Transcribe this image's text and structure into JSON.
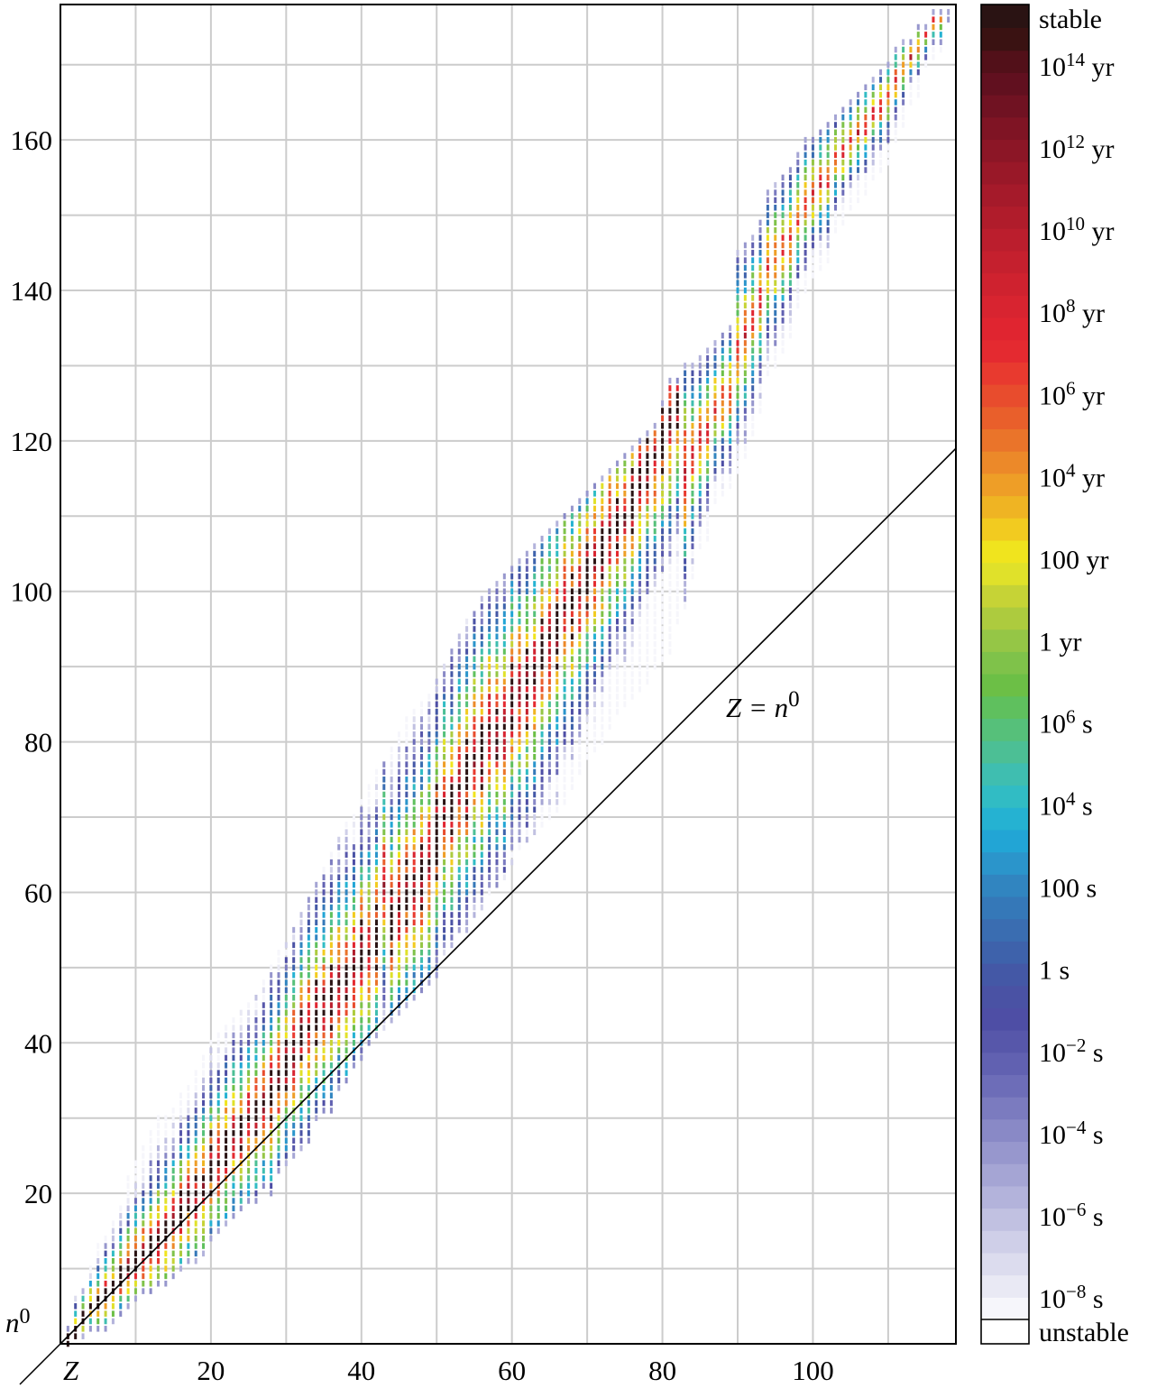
{
  "chart_data": {
    "type": "heatmap",
    "description_axes": {
      "x_symbol": "Z",
      "y_symbol": "n",
      "y_symbol_sup": "0"
    },
    "xlim": [
      0,
      119
    ],
    "ylim": [
      0,
      178
    ],
    "x_ticks": [
      20,
      40,
      60,
      80,
      100
    ],
    "y_ticks": [
      20,
      40,
      60,
      80,
      100,
      120,
      140,
      160
    ],
    "x_tick_labels": [
      "20",
      "40",
      "60",
      "80",
      "100"
    ],
    "y_tick_labels": [
      "20",
      "40",
      "60",
      "80",
      "100",
      "120",
      "140",
      "160"
    ],
    "grid": true,
    "grid_step": 10,
    "reference_line": {
      "label_main": "Z = n",
      "label_sup": "0",
      "slope": 1,
      "intercept": 0
    },
    "colorbar": {
      "labels": [
        {
          "base": "stable",
          "sup": "",
          "unit": ""
        },
        {
          "base": "10",
          "sup": "14",
          "unit": "yr"
        },
        {
          "base": "10",
          "sup": "12",
          "unit": "yr"
        },
        {
          "base": "10",
          "sup": "10",
          "unit": "yr"
        },
        {
          "base": "10",
          "sup": "8",
          "unit": "yr"
        },
        {
          "base": "10",
          "sup": "6",
          "unit": "yr"
        },
        {
          "base": "10",
          "sup": "4",
          "unit": "yr"
        },
        {
          "base": "100",
          "sup": "",
          "unit": "yr"
        },
        {
          "base": "1",
          "sup": "",
          "unit": "yr"
        },
        {
          "base": "10",
          "sup": "6",
          "unit": "s"
        },
        {
          "base": "10",
          "sup": "4",
          "unit": "s"
        },
        {
          "base": "100",
          "sup": "",
          "unit": "s"
        },
        {
          "base": "1",
          "sup": "",
          "unit": "s"
        },
        {
          "base": "10",
          "sup": "−2",
          "unit": "s"
        },
        {
          "base": "10",
          "sup": "−4",
          "unit": "s"
        },
        {
          "base": "10",
          "sup": "−6",
          "unit": "s"
        },
        {
          "base": "10",
          "sup": "−8",
          "unit": "s"
        },
        {
          "base": "unstable",
          "sup": "",
          "unit": ""
        }
      ],
      "colors": [
        "#f6f6fb",
        "#e9e9f4",
        "#dcdcee",
        "#cfcfe8",
        "#c1c1e1",
        "#b3b3db",
        "#a5a5d4",
        "#9797cd",
        "#8989c6",
        "#7b7bbf",
        "#6d6db8",
        "#6161b1",
        "#5757aa",
        "#4e4ea5",
        "#4a52a4",
        "#4458a6",
        "#3e62ab",
        "#3a6db1",
        "#3578b8",
        "#3185c0",
        "#2b95cb",
        "#22a5d5",
        "#25b2d2",
        "#31bcc4",
        "#3fbeb0",
        "#4cbf95",
        "#56c07a",
        "#5fc05e",
        "#6cbf46",
        "#7fc24a",
        "#95c646",
        "#adcb3e",
        "#c6d336",
        "#e0e12a",
        "#f0e41e",
        "#f2cb20",
        "#efb423",
        "#ee9e27",
        "#ec8929",
        "#ea742a",
        "#e95f2b",
        "#e84c2d",
        "#e83a2f",
        "#e42a30",
        "#e02530",
        "#d82430",
        "#cf222f",
        "#c5202e",
        "#bb1e2d",
        "#b01c2b",
        "#a51a2a",
        "#991828",
        "#8c1626",
        "#7f1424",
        "#701222",
        "#61101f",
        "#521019",
        "#3a1212",
        "#2a1313"
      ],
      "stable_color": "#2a1313",
      "unstable_color": "#ffffff"
    },
    "bands": [
      {
        "z": 1,
        "n0": 0,
        "n1": 2,
        "stable": [
          0,
          1
        ]
      },
      {
        "z": 2,
        "n0": 1,
        "n1": 6,
        "stable": [
          1,
          2
        ]
      },
      {
        "z": 3,
        "n0": 1,
        "n1": 7,
        "stable": [
          3,
          4
        ]
      },
      {
        "z": 4,
        "n0": 2,
        "n1": 10,
        "stable": [
          5
        ]
      },
      {
        "z": 5,
        "n0": 2,
        "n1": 13,
        "stable": [
          5,
          6
        ]
      },
      {
        "z": 6,
        "n0": 2,
        "n1": 14,
        "stable": [
          6,
          7
        ]
      },
      {
        "z": 7,
        "n0": 3,
        "n1": 16,
        "stable": [
          7,
          8
        ]
      },
      {
        "z": 8,
        "n0": 4,
        "n1": 18,
        "stable": [
          8,
          9,
          10
        ]
      },
      {
        "z": 9,
        "n0": 5,
        "n1": 22,
        "stable": [
          10
        ]
      },
      {
        "z": 10,
        "n0": 6,
        "n1": 24,
        "stable": [
          10,
          11,
          12
        ]
      },
      {
        "z": 11,
        "n0": 7,
        "n1": 26,
        "stable": [
          12
        ]
      },
      {
        "z": 12,
        "n0": 7,
        "n1": 28,
        "stable": [
          12,
          13,
          14
        ]
      },
      {
        "z": 13,
        "n0": 8,
        "n1": 30,
        "stable": [
          14
        ]
      },
      {
        "z": 14,
        "n0": 8,
        "n1": 30,
        "stable": [
          14,
          15,
          16
        ]
      },
      {
        "z": 15,
        "n0": 9,
        "n1": 31,
        "stable": [
          16
        ]
      },
      {
        "z": 16,
        "n0": 10,
        "n1": 33,
        "stable": [
          16,
          17,
          18,
          20
        ]
      },
      {
        "z": 17,
        "n0": 11,
        "n1": 34,
        "stable": [
          18,
          20
        ]
      },
      {
        "z": 18,
        "n0": 11,
        "n1": 36,
        "stable": [
          18,
          20,
          22
        ]
      },
      {
        "z": 19,
        "n0": 12,
        "n1": 38,
        "stable": [
          20,
          22
        ]
      },
      {
        "z": 20,
        "n0": 14,
        "n1": 40,
        "stable": [
          20,
          22,
          23,
          24,
          26,
          28
        ]
      },
      {
        "z": 21,
        "n0": 15,
        "n1": 41,
        "stable": [
          24
        ]
      },
      {
        "z": 22,
        "n0": 16,
        "n1": 42,
        "stable": [
          24,
          25,
          26,
          27,
          28
        ]
      },
      {
        "z": 23,
        "n0": 17,
        "n1": 43,
        "stable": [
          28
        ]
      },
      {
        "z": 24,
        "n0": 18,
        "n1": 44,
        "stable": [
          26,
          28,
          29,
          30
        ]
      },
      {
        "z": 25,
        "n0": 19,
        "n1": 45,
        "stable": [
          30
        ]
      },
      {
        "z": 26,
        "n0": 19,
        "n1": 46,
        "stable": [
          28,
          30,
          31,
          32
        ]
      },
      {
        "z": 27,
        "n0": 21,
        "n1": 48,
        "stable": [
          32
        ]
      },
      {
        "z": 28,
        "n0": 20,
        "n1": 50,
        "stable": [
          30,
          32,
          33,
          34,
          36
        ]
      },
      {
        "z": 29,
        "n0": 23,
        "n1": 52,
        "stable": [
          34,
          36
        ]
      },
      {
        "z": 30,
        "n0": 24,
        "n1": 53,
        "stable": [
          34,
          36,
          37,
          38,
          40
        ]
      },
      {
        "z": 31,
        "n0": 25,
        "n1": 55,
        "stable": [
          38,
          40
        ]
      },
      {
        "z": 32,
        "n0": 26,
        "n1": 57,
        "stable": [
          38,
          40,
          41,
          42,
          44
        ]
      },
      {
        "z": 33,
        "n0": 27,
        "n1": 59,
        "stable": [
          42
        ]
      },
      {
        "z": 34,
        "n0": 30,
        "n1": 61,
        "stable": [
          40,
          42,
          43,
          44,
          46,
          48
        ]
      },
      {
        "z": 35,
        "n0": 31,
        "n1": 63,
        "stable": [
          44,
          46
        ]
      },
      {
        "z": 36,
        "n0": 31,
        "n1": 65,
        "stable": [
          42,
          44,
          46,
          47,
          48,
          50
        ]
      },
      {
        "z": 37,
        "n0": 34,
        "n1": 67,
        "stable": [
          48
        ]
      },
      {
        "z": 38,
        "n0": 35,
        "n1": 69,
        "stable": [
          46,
          48,
          49,
          50
        ]
      },
      {
        "z": 39,
        "n0": 37,
        "n1": 70,
        "stable": [
          50
        ]
      },
      {
        "z": 40,
        "n0": 38,
        "n1": 72,
        "stable": [
          50,
          51,
          52,
          54,
          56
        ]
      },
      {
        "z": 41,
        "n0": 40,
        "n1": 74,
        "stable": [
          52
        ]
      },
      {
        "z": 42,
        "n0": 41,
        "n1": 76,
        "stable": [
          50,
          52,
          53,
          54,
          55,
          56,
          58
        ]
      },
      {
        "z": 43,
        "n0": 42,
        "n1": 77,
        "stable": []
      },
      {
        "z": 44,
        "n0": 43,
        "n1": 79,
        "stable": [
          52,
          54,
          55,
          56,
          57,
          58,
          60
        ]
      },
      {
        "z": 45,
        "n0": 44,
        "n1": 81,
        "stable": [
          58
        ]
      },
      {
        "z": 46,
        "n0": 45,
        "n1": 83,
        "stable": [
          56,
          58,
          59,
          60,
          62,
          64
        ]
      },
      {
        "z": 47,
        "n0": 46,
        "n1": 84,
        "stable": [
          60,
          62
        ]
      },
      {
        "z": 48,
        "n0": 47,
        "n1": 85,
        "stable": [
          58,
          60,
          62,
          63,
          64,
          66
        ]
      },
      {
        "z": 49,
        "n0": 48,
        "n1": 86,
        "stable": [
          64
        ]
      },
      {
        "z": 50,
        "n0": 49,
        "n1": 88,
        "stable": [
          62,
          64,
          65,
          66,
          67,
          68,
          69,
          70,
          72,
          74
        ]
      },
      {
        "z": 51,
        "n0": 52,
        "n1": 90,
        "stable": [
          70,
          72
        ]
      },
      {
        "z": 52,
        "n0": 53,
        "n1": 92,
        "stable": [
          68,
          70,
          71,
          72,
          73,
          74
        ]
      },
      {
        "z": 53,
        "n0": 55,
        "n1": 94,
        "stable": [
          74
        ]
      },
      {
        "z": 54,
        "n0": 55,
        "n1": 96,
        "stable": [
          70,
          72,
          74,
          75,
          76,
          77,
          78,
          80
        ]
      },
      {
        "z": 55,
        "n0": 57,
        "n1": 97,
        "stable": [
          78
        ]
      },
      {
        "z": 56,
        "n0": 58,
        "n1": 99,
        "stable": [
          74,
          76,
          78,
          79,
          80,
          81,
          82
        ]
      },
      {
        "z": 57,
        "n0": 60,
        "n1": 100,
        "stable": [
          82
        ]
      },
      {
        "z": 58,
        "n0": 61,
        "n1": 101,
        "stable": [
          78,
          80,
          82,
          84
        ]
      },
      {
        "z": 59,
        "n0": 62,
        "n1": 102,
        "stable": [
          82
        ]
      },
      {
        "z": 60,
        "n0": 64,
        "n1": 103,
        "stable": [
          82,
          83,
          85,
          86,
          88,
          90
        ]
      },
      {
        "z": 61,
        "n0": 66,
        "n1": 104,
        "stable": []
      },
      {
        "z": 62,
        "n0": 67,
        "n1": 105,
        "stable": [
          82,
          86,
          88,
          90,
          92
        ]
      },
      {
        "z": 63,
        "n0": 68,
        "n1": 106,
        "stable": [
          88,
          90
        ]
      },
      {
        "z": 64,
        "n0": 69,
        "n1": 107,
        "stable": [
          90,
          91,
          92,
          93,
          94,
          96
        ]
      },
      {
        "z": 65,
        "n0": 70,
        "n1": 108,
        "stable": [
          94
        ]
      },
      {
        "z": 66,
        "n0": 71,
        "n1": 109,
        "stable": [
          90,
          92,
          94,
          95,
          96,
          97,
          98
        ]
      },
      {
        "z": 67,
        "n0": 72,
        "n1": 110,
        "stable": [
          98
        ]
      },
      {
        "z": 68,
        "n0": 74,
        "n1": 111,
        "stable": [
          94,
          96,
          98,
          99,
          100,
          102
        ]
      },
      {
        "z": 69,
        "n0": 76,
        "n1": 112,
        "stable": [
          100
        ]
      },
      {
        "z": 70,
        "n0": 78,
        "n1": 113,
        "stable": [
          98,
          100,
          101,
          102,
          103,
          104,
          106
        ]
      },
      {
        "z": 71,
        "n0": 79,
        "n1": 114,
        "stable": [
          104
        ]
      },
      {
        "z": 72,
        "n0": 80,
        "n1": 115,
        "stable": [
          102,
          104,
          105,
          106,
          107,
          108
        ]
      },
      {
        "z": 73,
        "n0": 82,
        "n1": 116,
        "stable": [
          108
        ]
      },
      {
        "z": 74,
        "n0": 84,
        "n1": 117,
        "stable": [
          106,
          108,
          109,
          110,
          112
        ]
      },
      {
        "z": 75,
        "n0": 85,
        "n1": 118,
        "stable": [
          110
        ]
      },
      {
        "z": 76,
        "n0": 86,
        "n1": 119,
        "stable": [
          108,
          110,
          111,
          112,
          113,
          114,
          116
        ]
      },
      {
        "z": 77,
        "n0": 87,
        "n1": 120,
        "stable": [
          114,
          116
        ]
      },
      {
        "z": 78,
        "n0": 88,
        "n1": 121,
        "stable": [
          114,
          116,
          117,
          118,
          120
        ]
      },
      {
        "z": 79,
        "n0": 90,
        "n1": 122,
        "stable": [
          118
        ]
      },
      {
        "z": 80,
        "n0": 91,
        "n1": 125,
        "stable": [
          116,
          118,
          119,
          120,
          121,
          122,
          124
        ]
      },
      {
        "z": 81,
        "n0": 92,
        "n1": 128,
        "stable": [
          122,
          124
        ]
      },
      {
        "z": 82,
        "n0": 96,
        "n1": 128,
        "stable": [
          122,
          124,
          125,
          126
        ]
      },
      {
        "z": 83,
        "n0": 98,
        "n1": 130,
        "stable": []
      },
      {
        "z": 84,
        "n0": 102,
        "n1": 130,
        "stable": []
      },
      {
        "z": 85,
        "n0": 106,
        "n1": 131,
        "stable": []
      },
      {
        "z": 86,
        "n0": 107,
        "n1": 132,
        "stable": []
      },
      {
        "z": 87,
        "n0": 112,
        "n1": 133,
        "stable": []
      },
      {
        "z": 88,
        "n0": 113,
        "n1": 134,
        "stable": []
      },
      {
        "z": 89,
        "n0": 114,
        "n1": 135,
        "stable": []
      },
      {
        "z": 90,
        "n0": 116,
        "n1": 145,
        "stable": []
      },
      {
        "z": 91,
        "n0": 118,
        "n1": 146,
        "stable": []
      },
      {
        "z": 92,
        "n0": 121,
        "n1": 147,
        "stable": []
      },
      {
        "z": 93,
        "n0": 124,
        "n1": 149,
        "stable": []
      },
      {
        "z": 94,
        "n0": 129,
        "n1": 153,
        "stable": []
      },
      {
        "z": 95,
        "n0": 130,
        "n1": 154,
        "stable": []
      },
      {
        "z": 96,
        "n0": 132,
        "n1": 155,
        "stable": []
      },
      {
        "z": 97,
        "n0": 134,
        "n1": 156,
        "stable": []
      },
      {
        "z": 98,
        "n0": 138,
        "n1": 158,
        "stable": []
      },
      {
        "z": 99,
        "n0": 140,
        "n1": 160,
        "stable": []
      },
      {
        "z": 100,
        "n0": 142,
        "n1": 160,
        "stable": []
      },
      {
        "z": 101,
        "n0": 143,
        "n1": 161,
        "stable": []
      },
      {
        "z": 102,
        "n0": 144,
        "n1": 162,
        "stable": []
      },
      {
        "z": 103,
        "n0": 148,
        "n1": 163,
        "stable": []
      },
      {
        "z": 104,
        "n0": 149,
        "n1": 164,
        "stable": []
      },
      {
        "z": 105,
        "n0": 151,
        "n1": 165,
        "stable": []
      },
      {
        "z": 106,
        "n0": 152,
        "n1": 166,
        "stable": []
      },
      {
        "z": 107,
        "n0": 153,
        "n1": 167,
        "stable": []
      },
      {
        "z": 108,
        "n0": 155,
        "n1": 168,
        "stable": []
      },
      {
        "z": 109,
        "n0": 156,
        "n1": 169,
        "stable": []
      },
      {
        "z": 110,
        "n0": 157,
        "n1": 170,
        "stable": []
      },
      {
        "z": 111,
        "n0": 160,
        "n1": 172,
        "stable": []
      },
      {
        "z": 112,
        "n0": 162,
        "n1": 173,
        "stable": []
      },
      {
        "z": 113,
        "n0": 165,
        "n1": 173,
        "stable": []
      },
      {
        "z": 114,
        "n0": 166,
        "n1": 175,
        "stable": []
      },
      {
        "z": 115,
        "n0": 170,
        "n1": 175,
        "stable": []
      },
      {
        "z": 116,
        "n0": 171,
        "n1": 177,
        "stable": []
      },
      {
        "z": 117,
        "n0": 172,
        "n1": 177,
        "stable": []
      },
      {
        "z": 118,
        "n0": 176,
        "n1": 177,
        "stable": []
      }
    ]
  }
}
